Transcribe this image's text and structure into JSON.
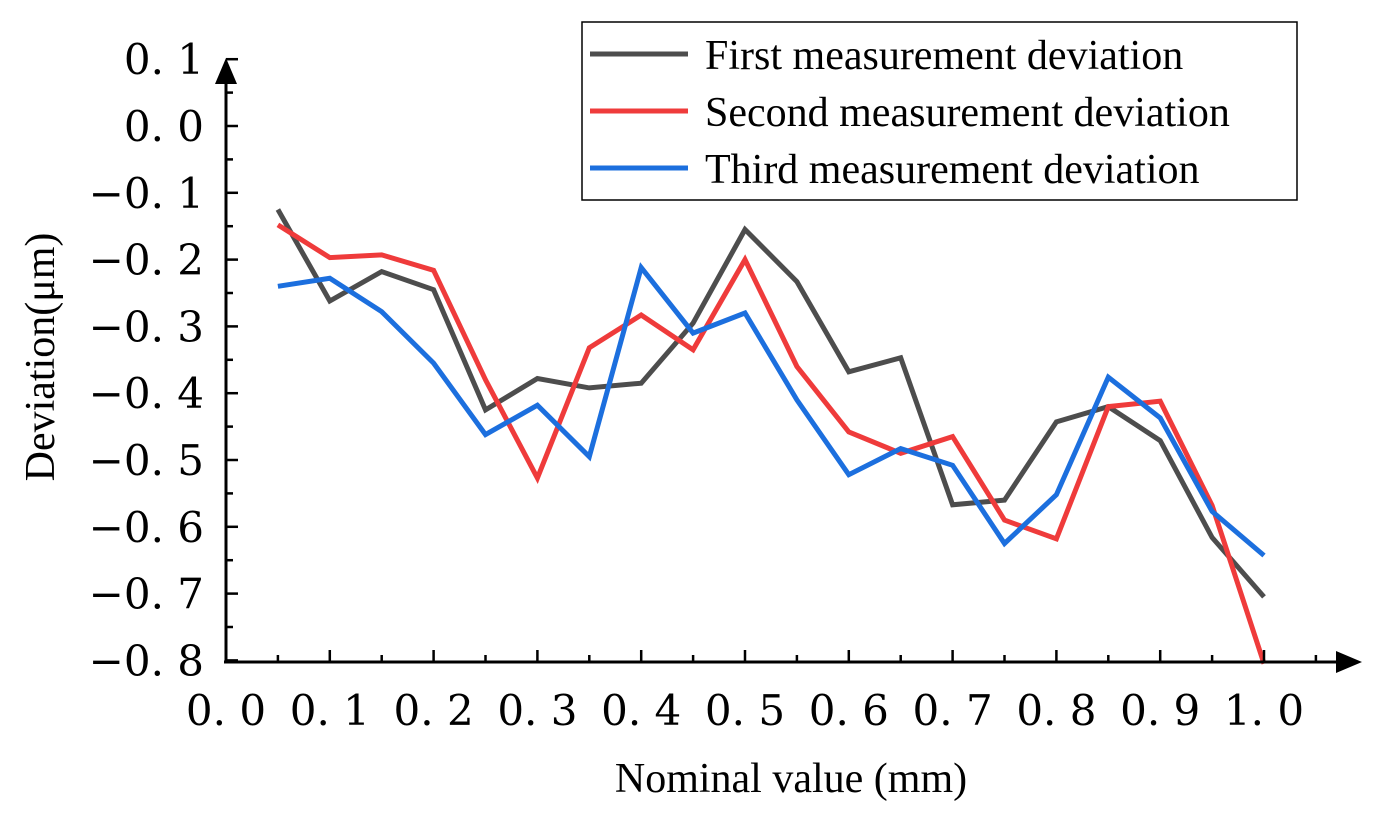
{
  "chart_data": {
    "type": "line",
    "title": "",
    "xlabel": "Nominal value (mm)",
    "ylabel": "Deviation(μm)",
    "xlim": [
      0.0,
      1.05
    ],
    "ylim": [
      -0.8,
      0.1
    ],
    "xticks": [
      0.0,
      0.1,
      0.2,
      0.3,
      0.4,
      0.5,
      0.6,
      0.7,
      0.8,
      0.9,
      1.0
    ],
    "xtick_labels": [
      "0. 0",
      "0. 1",
      "0. 2",
      "0. 3",
      "0. 4",
      "0. 5",
      "0. 6",
      "0. 7",
      "0. 8",
      "0. 9",
      "1. 0"
    ],
    "yticks": [
      0.1,
      0.0,
      -0.1,
      -0.2,
      -0.3,
      -0.4,
      -0.5,
      -0.6,
      -0.7,
      -0.8
    ],
    "ytick_labels": [
      "0. 1",
      "0. 0",
      "−0. 1",
      "−0. 2",
      "−0. 3",
      "−0. 4",
      "−0. 5",
      "−0. 6",
      "−0. 7",
      "−0. 8"
    ],
    "grid": false,
    "legend_position": "top-right",
    "x": [
      0.05,
      0.1,
      0.15,
      0.2,
      0.25,
      0.3,
      0.35,
      0.4,
      0.45,
      0.5,
      0.55,
      0.6,
      0.65,
      0.7,
      0.75,
      0.8,
      0.85,
      0.9,
      0.95,
      1.0
    ],
    "series": [
      {
        "name": "First measurement deviation",
        "color": "#4d4d4d",
        "values": [
          -0.125,
          -0.262,
          -0.218,
          -0.245,
          -0.425,
          -0.378,
          -0.392,
          -0.385,
          -0.295,
          -0.155,
          -0.233,
          -0.368,
          -0.347,
          -0.567,
          -0.56,
          -0.443,
          -0.42,
          -0.471,
          -0.616,
          -0.705
        ]
      },
      {
        "name": "Second measurement deviation",
        "color": "#ef3b3b",
        "values": [
          -0.148,
          -0.197,
          -0.193,
          -0.216,
          -0.38,
          -0.527,
          -0.332,
          -0.283,
          -0.335,
          -0.2,
          -0.36,
          -0.458,
          -0.49,
          -0.465,
          -0.59,
          -0.618,
          -0.42,
          -0.412,
          -0.568,
          -0.805
        ]
      },
      {
        "name": "Third measurement deviation",
        "color": "#1c6fde",
        "values": [
          -0.24,
          -0.228,
          -0.278,
          -0.355,
          -0.462,
          -0.418,
          -0.495,
          -0.212,
          -0.31,
          -0.28,
          -0.41,
          -0.522,
          -0.483,
          -0.508,
          -0.625,
          -0.552,
          -0.376,
          -0.437,
          -0.577,
          -0.643
        ]
      }
    ]
  }
}
